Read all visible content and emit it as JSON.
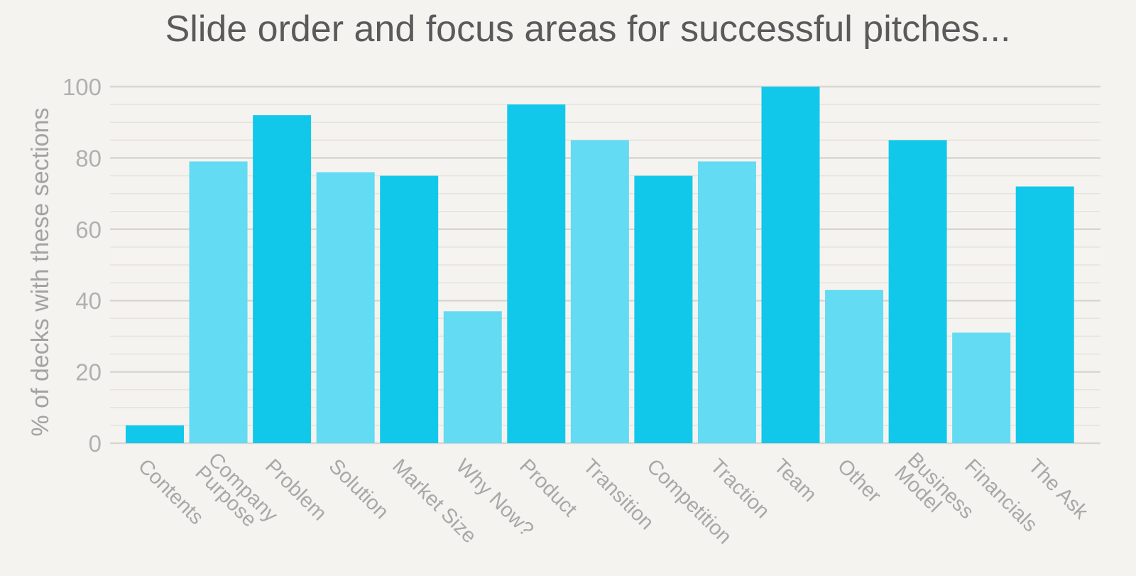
{
  "chart_data": {
    "type": "bar",
    "title": "Slide order and focus areas for successful pitches...",
    "xlabel": "",
    "ylabel": "% of decks with these sections",
    "ylim": [
      0,
      100
    ],
    "yticks": [
      0,
      20,
      40,
      60,
      80,
      100
    ],
    "grid": true,
    "categories": [
      [
        "Contents"
      ],
      [
        "Company",
        "Purpose"
      ],
      [
        "Problem"
      ],
      [
        "Solution"
      ],
      [
        "Market Size"
      ],
      [
        "Why Now?"
      ],
      [
        "Product"
      ],
      [
        "Transition"
      ],
      [
        "Competition"
      ],
      [
        "Traction"
      ],
      [
        "Team"
      ],
      [
        "Other"
      ],
      [
        "Business",
        "Model"
      ],
      [
        "Financials"
      ],
      [
        "The Ask"
      ]
    ],
    "values": [
      5,
      79,
      92,
      76,
      75,
      37,
      95,
      85,
      75,
      79,
      100,
      43,
      85,
      31,
      72
    ],
    "bar_colors": [
      "#12c8ea",
      "#62dbf3",
      "#12c8ea",
      "#62dbf3",
      "#12c8ea",
      "#62dbf3",
      "#12c8ea",
      "#62dbf3",
      "#12c8ea",
      "#62dbf3",
      "#12c8ea",
      "#62dbf3",
      "#12c8ea",
      "#62dbf3",
      "#12c8ea"
    ]
  }
}
